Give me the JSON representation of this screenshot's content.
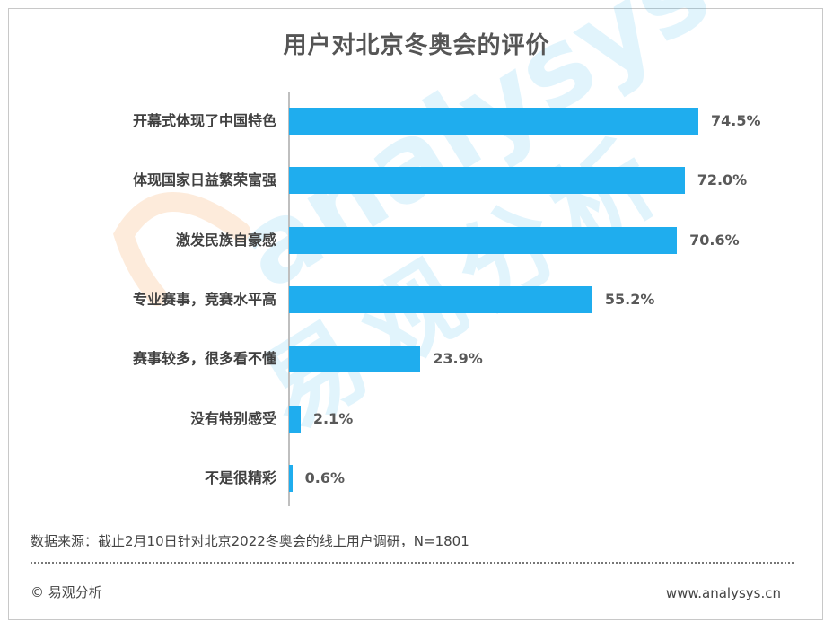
{
  "chart_data": {
    "type": "bar",
    "orientation": "horizontal",
    "title": "用户对北京冬奥会的评价",
    "categories": [
      "开幕式体现了中国特色",
      "体现国家日益繁荣富强",
      "激发民族自豪感",
      "专业赛事，竞赛水平高",
      "赛事较多，很多看不懂",
      "没有特别感受",
      "不是很精彩"
    ],
    "values": [
      74.5,
      72.0,
      70.6,
      55.2,
      23.9,
      2.1,
      0.6
    ],
    "value_labels": [
      "74.5%",
      "72.0%",
      "70.6%",
      "55.2%",
      "23.9%",
      "2.1%",
      "0.6%"
    ],
    "unit": "%",
    "xlim": [
      0,
      100
    ],
    "grid": false,
    "legend": "none",
    "bar_color": "#1fadee"
  },
  "footer": {
    "source": "数据来源：截止2月10日针对北京2022冬奥会的线上用户调研，N=1801",
    "copyright": "© 易观分析",
    "website": "www.analysys.cn"
  },
  "watermark": {
    "logo_text": "analysys",
    "cn_text": "易观分析",
    "logo_color": "#f7a35c",
    "text_color": "#1fadee"
  }
}
